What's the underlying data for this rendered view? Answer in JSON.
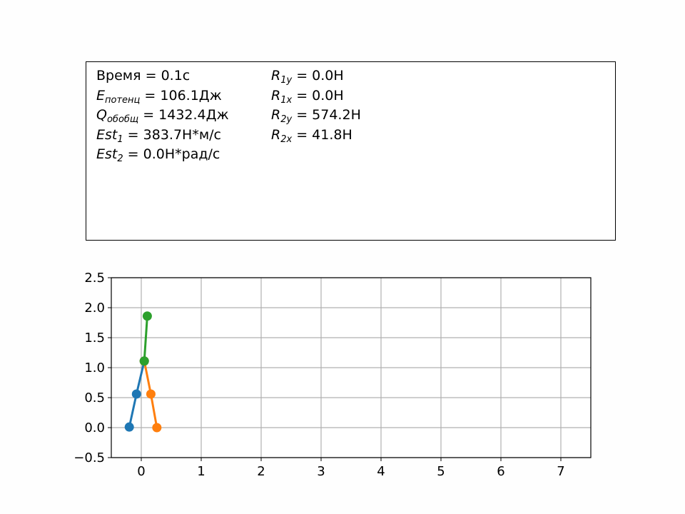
{
  "info_panel": {
    "left_column": [
      {
        "var": "Время",
        "sub": "",
        "italic": false,
        "eq": " = ",
        "value": "0.1c"
      },
      {
        "var": "E",
        "sub": "потенц",
        "italic": true,
        "eq": " = ",
        "value": "106.1Дж"
      },
      {
        "var": "Q",
        "sub": "обобщ",
        "italic": true,
        "eq": " = ",
        "value": "1432.4Дж"
      },
      {
        "var": "Est",
        "sub": "1",
        "italic": true,
        "eq": " = ",
        "value": "383.7Н*м/с"
      },
      {
        "var": "Est",
        "sub": "2",
        "italic": true,
        "eq": " = ",
        "value": "0.0Н*рад/с"
      }
    ],
    "right_column": [
      {
        "var": "R",
        "sub": "1y",
        "italic": true,
        "eq": " = ",
        "value": "0.0Н"
      },
      {
        "var": "R",
        "sub": "1x",
        "italic": true,
        "eq": " = ",
        "value": "0.0Н"
      },
      {
        "var": "R",
        "sub": "2y",
        "italic": true,
        "eq": " = ",
        "value": "574.2Н"
      },
      {
        "var": "R",
        "sub": "2x",
        "italic": true,
        "eq": " = ",
        "value": "41.8Н"
      }
    ]
  },
  "chart_data": {
    "type": "line",
    "title": "",
    "xlabel": "",
    "ylabel": "",
    "xlim": [
      -0.5,
      7.5
    ],
    "ylim": [
      -0.5,
      2.5
    ],
    "xticks": [
      0,
      1,
      2,
      3,
      4,
      5,
      6,
      7
    ],
    "yticks": [
      -0.5,
      0.0,
      0.5,
      1.0,
      1.5,
      2.0,
      2.5
    ],
    "ytick_labels": [
      "−0.5",
      "0.0",
      "0.5",
      "1.0",
      "1.5",
      "2.0",
      "2.5"
    ],
    "xtick_labels": [
      "0",
      "1",
      "2",
      "3",
      "4",
      "5",
      "6",
      "7"
    ],
    "grid": true,
    "series": [
      {
        "color": "#1f77b4",
        "x": [
          -0.2,
          -0.08,
          0.05
        ],
        "y": [
          0.01,
          0.56,
          1.11
        ]
      },
      {
        "color": "#ff7f0e",
        "x": [
          0.05,
          0.16,
          0.26
        ],
        "y": [
          1.11,
          0.56,
          0.0
        ]
      },
      {
        "color": "#2ca02c",
        "x": [
          0.05,
          0.1
        ],
        "y": [
          1.11,
          1.86
        ]
      }
    ]
  }
}
